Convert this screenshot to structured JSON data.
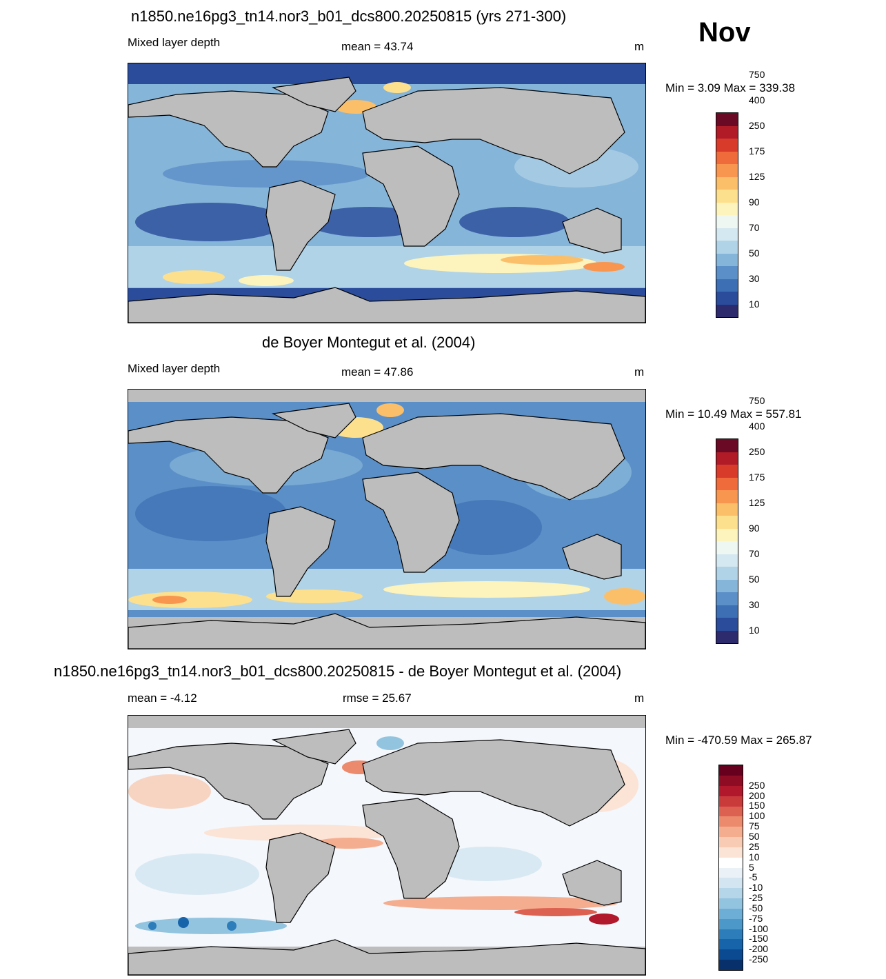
{
  "month": "Nov",
  "panels": [
    {
      "title": "n1850.ne16pg3_tn14.nor3_b01_dcs800.20250815 (yrs 271-300)",
      "left_label": "Mixed layer depth",
      "center_label": "mean =  43.74",
      "units": "m",
      "minmax": "Min =   3.09 Max = 339.38",
      "colorbar_labels": [
        "10",
        "30",
        "50",
        "70",
        "90",
        "125",
        "175",
        "250",
        "400",
        "750"
      ],
      "colorbar_colors": [
        "#2e2a6e",
        "#2b4c9a",
        "#3d6fb4",
        "#5b8fc7",
        "#86b5da",
        "#b0d3e7",
        "#d4e8f1",
        "#eef7f2",
        "#fdf4bd",
        "#fde08d",
        "#fbbf6a",
        "#f89650",
        "#ef6b3c",
        "#d93b2b",
        "#b01b27",
        "#6b0a24"
      ]
    },
    {
      "title": "de Boyer Montegut et al. (2004)",
      "left_label": "Mixed layer depth",
      "center_label": "mean =  47.86",
      "units": "m",
      "minmax": "Min =  10.49 Max = 557.81",
      "colorbar_labels": [
        "10",
        "30",
        "50",
        "70",
        "90",
        "125",
        "175",
        "250",
        "400",
        "750"
      ],
      "colorbar_colors": [
        "#2e2a6e",
        "#2b4c9a",
        "#3d6fb4",
        "#5b8fc7",
        "#86b5da",
        "#b0d3e7",
        "#d4e8f1",
        "#eef7f2",
        "#fdf4bd",
        "#fde08d",
        "#fbbf6a",
        "#f89650",
        "#ef6b3c",
        "#d93b2b",
        "#b01b27",
        "#6b0a24"
      ]
    },
    {
      "title": "n1850.ne16pg3_tn14.nor3_b01_dcs800.20250815 - de Boyer Montegut et al. (2004)",
      "left_label": "mean =  -4.12",
      "center_label": "rmse =  25.67",
      "units": "m",
      "minmax": "Min = -470.59 Max = 265.87",
      "colorbar_labels": [
        "-250",
        "-200",
        "-150",
        "-100",
        "-75",
        "-50",
        "-25",
        "-10",
        "-5",
        "5",
        "10",
        "25",
        "50",
        "75",
        "100",
        "150",
        "200",
        "250"
      ],
      "colorbar_colors": [
        "#08306b",
        "#0b4a91",
        "#1764ab",
        "#2d7dbb",
        "#4b98c9",
        "#6daed6",
        "#93c4df",
        "#b5d5e9",
        "#d2e5f1",
        "#eaf2f8",
        "#ffffff",
        "#fbe3d6",
        "#f8cbb4",
        "#f4ad8f",
        "#eb8a6d",
        "#dc6151",
        "#c93b3b",
        "#b1182b",
        "#8f0c25",
        "#67001f"
      ]
    }
  ],
  "colors": {
    "land": "#bdbdbd",
    "ocean_base_mld": "#86b5da",
    "ocean_base_diff": "#f4f7fb"
  }
}
